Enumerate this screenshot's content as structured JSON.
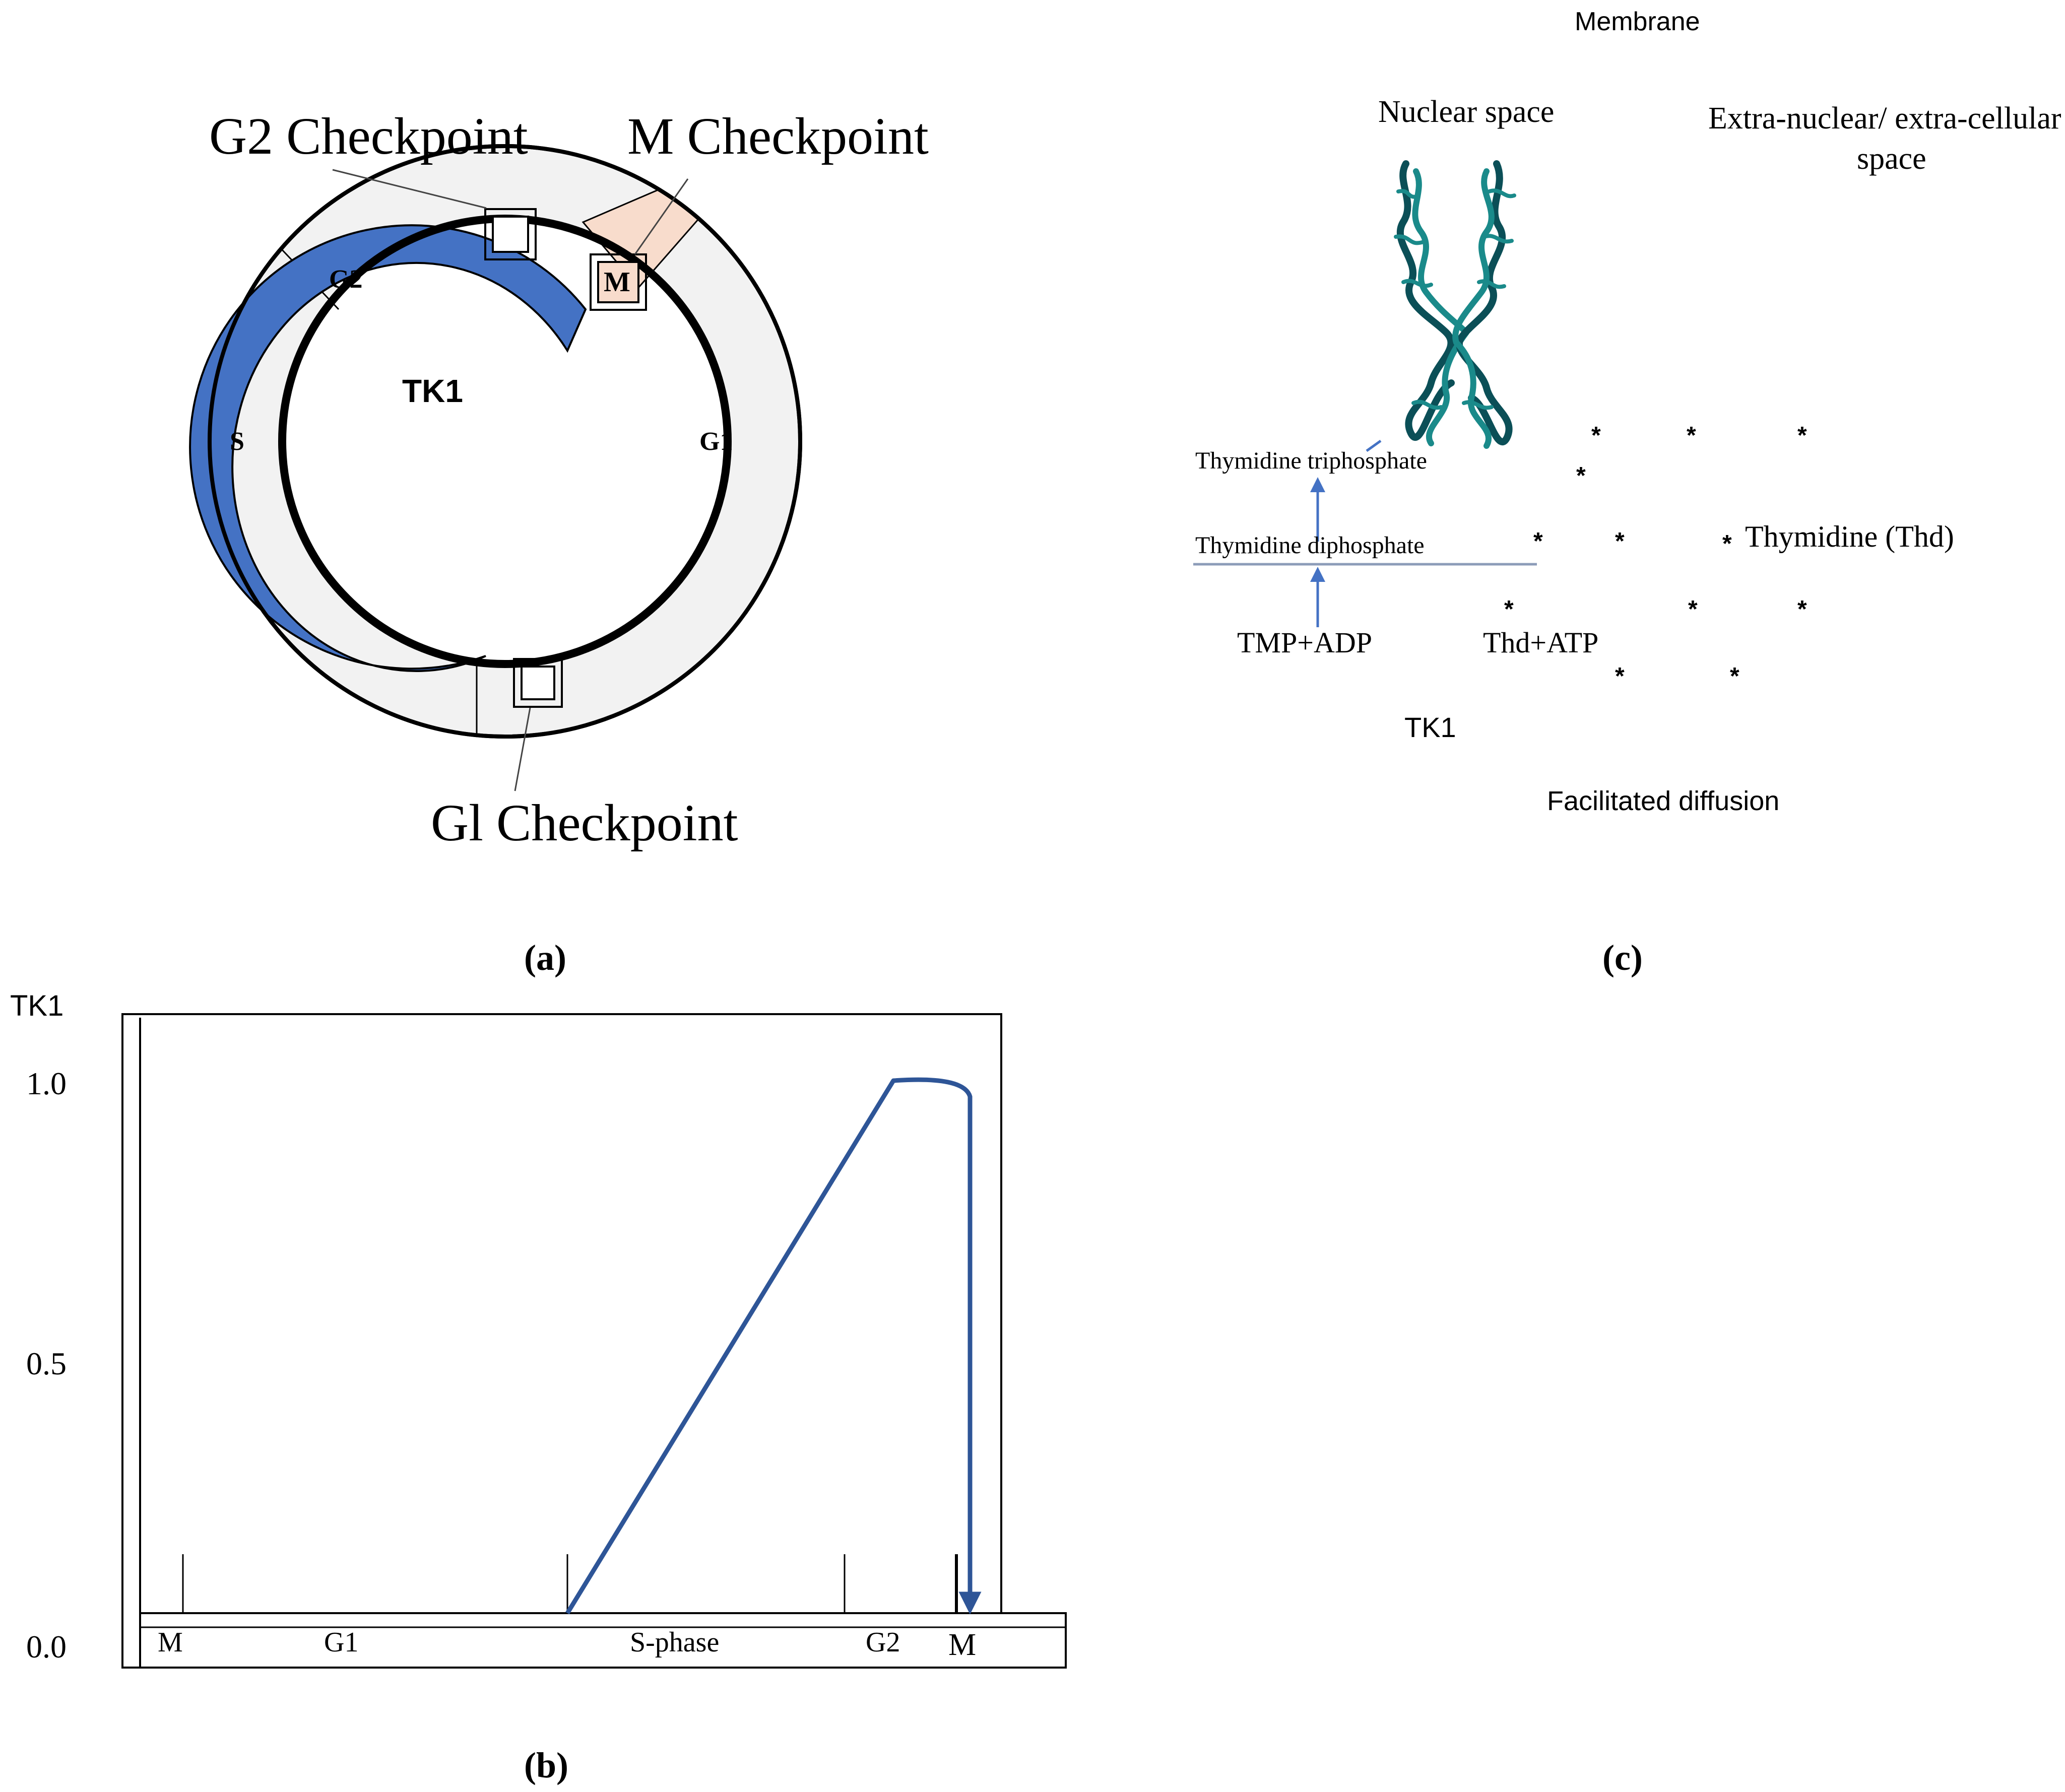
{
  "panel_a": {
    "label": "(a)",
    "checkpoints": {
      "g2": "G2 Checkpoint",
      "m": "M Checkpoint",
      "g1": "Gl Checkpoint"
    },
    "phases": {
      "g2": "G2",
      "s": "S",
      "g1": "G1",
      "m": "M"
    },
    "center_label": "TK1",
    "colors": {
      "tk1_arc": "#4472c4",
      "m_sector": "#f8dccc",
      "ring_fill": "#f2f2f2"
    }
  },
  "panel_b": {
    "label": "(b)",
    "chart_data": {
      "type": "line",
      "ylabel": "TK1",
      "yticks": [
        "1.0",
        "0.5",
        "0.0"
      ],
      "ylim": [
        0.0,
        1.0
      ],
      "phase_labels": [
        "M",
        "G1",
        "S-phase",
        "G2",
        "M"
      ],
      "series": [
        {
          "values_description": "",
          "x": [
            "S-phase start",
            "G2",
            "G2 end",
            "M"
          ],
          "y": [
            0.0,
            1.0,
            0.97,
            0.0
          ]
        }
      ],
      "color": "#2e5597"
    }
  },
  "panel_c": {
    "label": "(c)",
    "membrane": "Membrane",
    "nuclear_space": "Nuclear space",
    "extra_line1": "Extra-nuclear/ extra-cellular",
    "extra_line2": "space",
    "thymidine_triphosphate": "Thymidine triphosphate",
    "thymidine_diphosphate": "Thymidine diphosphate",
    "tmp_adp": "TMP+ADP",
    "thd_atp": "Thd+ATP",
    "tk1": "TK1",
    "thymidine": "Thymidine (Thd)",
    "facilitated_diffusion": "Facilitated diffusion",
    "asterisk": "*",
    "colors": {
      "arrow": "#4472c4",
      "chromosome": "#1a8a8a",
      "chromosome_dark": "#0b4f57"
    }
  }
}
